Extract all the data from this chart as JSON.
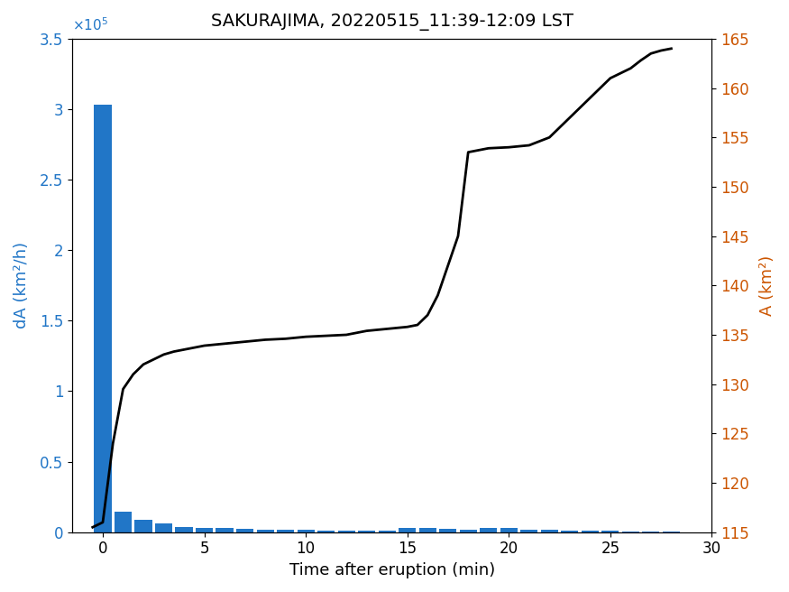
{
  "title": "SAKURAJIMA, 20220515_11:39-12:09 LST",
  "xlabel": "Time after eruption (min)",
  "ylabel_left": "dA (km²/h)",
  "ylabel_right": "A (km²)",
  "bar_color": "#2176c7",
  "line_color": "#000000",
  "left_ylabel_color": "#2176c7",
  "right_ylabel_color": "#cc5500",
  "xlim": [
    -1.5,
    30
  ],
  "ylim_left": [
    0,
    350000
  ],
  "ylim_right": [
    115,
    165
  ],
  "xticks": [
    0,
    5,
    10,
    15,
    20,
    25,
    30
  ],
  "yticks_left": [
    0,
    50000,
    100000,
    150000,
    200000,
    250000,
    300000,
    350000
  ],
  "yticks_left_labels": [
    "0",
    "0.5",
    "1",
    "1.5",
    "2",
    "2.5",
    "3",
    "3.5"
  ],
  "yticks_right": [
    115,
    120,
    125,
    130,
    135,
    140,
    145,
    150,
    155,
    160,
    165
  ],
  "bar_times": [
    0,
    1,
    2,
    3,
    4,
    5,
    6,
    7,
    8,
    9,
    10,
    11,
    12,
    13,
    14,
    15,
    16,
    17,
    18,
    19,
    20,
    21,
    22,
    23,
    24,
    25,
    26,
    27,
    28
  ],
  "bar_heights": [
    303000,
    14500,
    8500,
    6500,
    3500,
    3200,
    2800,
    2200,
    2000,
    1800,
    1500,
    1200,
    1000,
    900,
    800,
    3200,
    2800,
    2200,
    2000,
    3200,
    2800,
    2000,
    1500,
    1200,
    1000,
    800,
    500,
    400,
    300
  ],
  "line_times": [
    -0.5,
    0.0,
    0.5,
    1.0,
    1.5,
    2.0,
    2.5,
    3.0,
    3.5,
    4.0,
    4.5,
    5.0,
    5.5,
    6.0,
    7.0,
    8.0,
    9.0,
    10.0,
    11.0,
    12.0,
    12.5,
    13.0,
    13.5,
    14.0,
    14.5,
    15.0,
    15.5,
    16.0,
    16.5,
    17.0,
    17.5,
    18.0,
    18.5,
    19.0,
    20.0,
    21.0,
    22.0,
    23.0,
    24.0,
    25.0,
    25.5,
    26.0,
    26.5,
    27.0,
    27.5,
    28.0
  ],
  "line_values": [
    115.5,
    116.0,
    124.0,
    129.5,
    131.0,
    132.0,
    132.5,
    133.0,
    133.3,
    133.5,
    133.7,
    133.9,
    134.0,
    134.1,
    134.3,
    134.5,
    134.6,
    134.8,
    134.9,
    135.0,
    135.2,
    135.4,
    135.5,
    135.6,
    135.7,
    135.8,
    136.0,
    137.0,
    139.0,
    142.0,
    145.0,
    153.5,
    153.7,
    153.9,
    154.0,
    154.2,
    155.0,
    157.0,
    159.0,
    161.0,
    161.5,
    162.0,
    162.8,
    163.5,
    163.8,
    164.0
  ]
}
